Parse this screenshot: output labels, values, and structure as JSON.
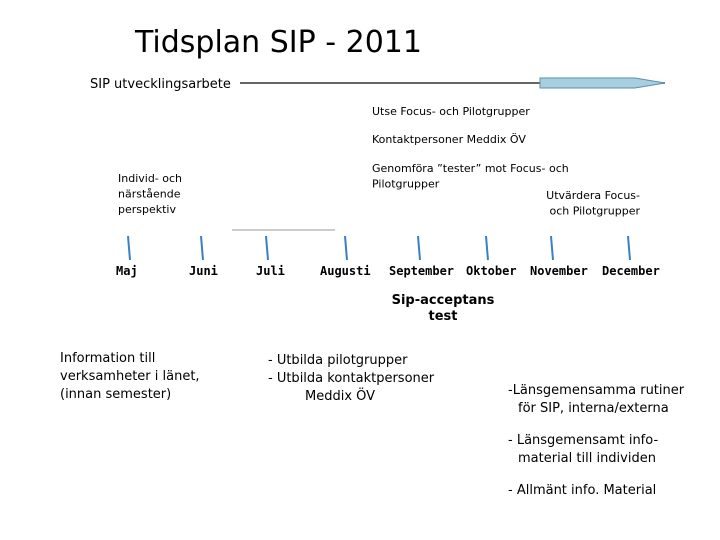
{
  "title": "Tidsplan SIP - 2011",
  "track_label": "SIP utvecklingsarbete",
  "activities": [
    {
      "lines": [
        "Utse Focus- och Pilotgrupper"
      ]
    },
    {
      "lines": [
        "Kontaktpersoner Meddix ÖV"
      ]
    },
    {
      "lines": [
        "Genomföra ”tester” mot Focus- och",
        "Pilotgrupper"
      ]
    },
    {
      "lines": [
        "Utvärdera Focus-",
        "och Pilotgrupper"
      ]
    },
    {
      "lines": [
        "Individ- och",
        "närstående",
        "perspektiv"
      ]
    }
  ],
  "months": [
    "Maj",
    "Juni",
    "Juli",
    "Augusti",
    "September",
    "Oktober",
    "November",
    "December"
  ],
  "milestone": {
    "lines": [
      "Sip-acceptans",
      "test"
    ]
  },
  "notes": [
    {
      "lines": [
        "Information till",
        "verksamheter i länet,",
        "(innan semester)"
      ]
    },
    {
      "lines": [
        "- Utbilda pilotgrupper",
        "- Utbilda kontaktpersoner",
        "Meddix ÖV"
      ]
    },
    {
      "lines": [
        "-Länsgemensamma rutiner",
        "för SIP, interna/externa"
      ]
    },
    {
      "lines": [
        "- Länsgemensamt info-",
        "material till individen"
      ]
    },
    {
      "lines": [
        "- Allmänt info. Material"
      ]
    }
  ]
}
